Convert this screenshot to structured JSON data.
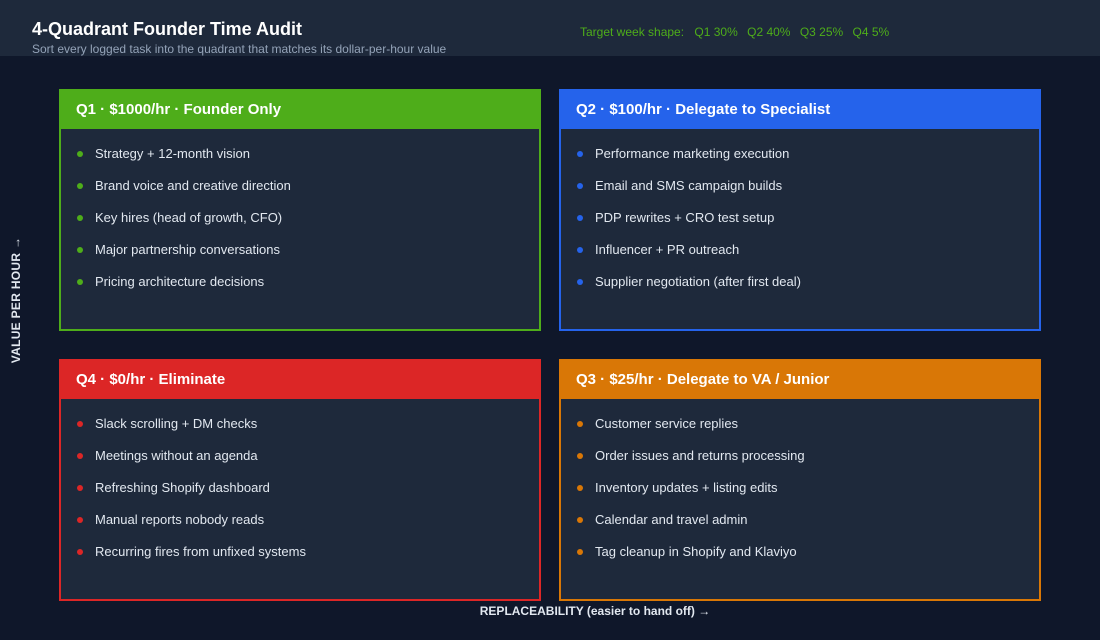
{
  "header": {
    "title": "4-Quadrant Founder Time Audit",
    "subtitle": "Sort every logged task into the quadrant that matches its dollar-per-hour value",
    "target_label": "Target week shape:",
    "targets": [
      "Q1 30%",
      "Q2 40%",
      "Q3 25%",
      "Q4 5%"
    ]
  },
  "axes": {
    "y_label": "VALUE PER HOUR →",
    "x_label": "REPLACEABILITY (easier to hand off) →"
  },
  "colors": {
    "q1": "#4ead1a",
    "q2": "#2563eb",
    "q3": "#d97706",
    "q4": "#dc2626"
  },
  "quadrants": {
    "q1": {
      "title": "Q1  ·  $1000/hr · Founder Only",
      "items": [
        "Strategy + 12-month vision",
        "Brand voice and creative direction",
        "Key hires (head of growth, CFO)",
        "Major partnership conversations",
        "Pricing architecture decisions"
      ]
    },
    "q2": {
      "title": "Q2  ·  $100/hr · Delegate to Specialist",
      "items": [
        "Performance marketing execution",
        "Email and SMS campaign builds",
        "PDP rewrites + CRO test setup",
        "Influencer + PR outreach",
        "Supplier negotiation (after first deal)"
      ]
    },
    "q4": {
      "title": "Q4  ·  $0/hr · Eliminate",
      "items": [
        "Slack scrolling + DM checks",
        "Meetings without an agenda",
        "Refreshing Shopify dashboard",
        "Manual reports nobody reads",
        "Recurring fires from unfixed systems"
      ]
    },
    "q3": {
      "title": "Q3  ·  $25/hr · Delegate to VA / Junior",
      "items": [
        "Customer service replies",
        "Order issues and returns processing",
        "Inventory updates + listing edits",
        "Calendar and travel admin",
        "Tag cleanup in Shopify and Klaviyo"
      ]
    }
  }
}
